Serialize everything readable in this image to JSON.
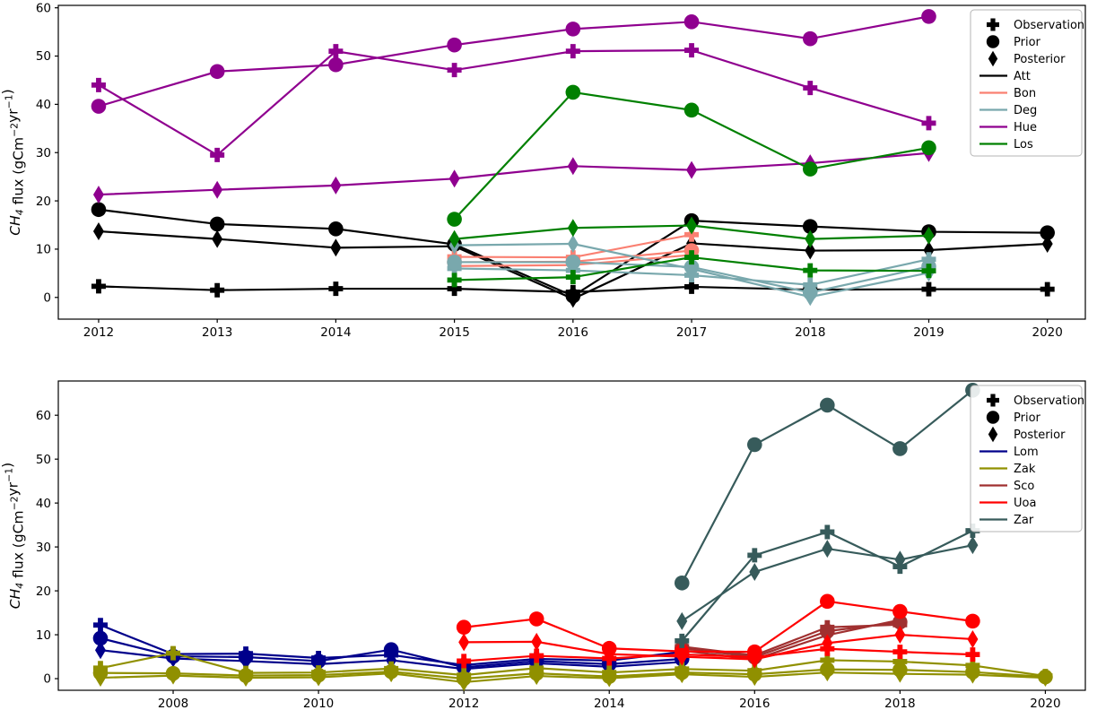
{
  "figure": {
    "background": "#ffffff",
    "marker_semantics": {
      "observation": "plus-icon",
      "prior": "circle-icon",
      "posterior": "diamond-icon"
    }
  },
  "chart_data": [
    {
      "id": "top-chart",
      "type": "line",
      "title": "",
      "xlabel": "",
      "ylabel": "CH4 flux (gCm-2yr-1)",
      "ylabel_parts": [
        {
          "text": "CH",
          "italic": true
        },
        {
          "text": "4",
          "sub": true,
          "italic": true
        },
        {
          "text": " flux (gCm"
        },
        {
          "text": "−2",
          "sup": true
        },
        {
          "text": "yr"
        },
        {
          "text": "−1",
          "sup": true
        },
        {
          "text": ")"
        }
      ],
      "xlim": [
        2011.66,
        2020.32
      ],
      "ylim": [
        -4.5,
        60.5
      ],
      "xticks": [
        2012,
        2013,
        2014,
        2015,
        2016,
        2017,
        2018,
        2019,
        2020
      ],
      "yticks": [
        0,
        10,
        20,
        30,
        40,
        50,
        60
      ],
      "grid": false,
      "legend_position": "upper right",
      "marker_legend": [
        {
          "label": "Observation",
          "marker": "plus"
        },
        {
          "label": "Prior",
          "marker": "circle"
        },
        {
          "label": "Posterior",
          "marker": "diamond"
        }
      ],
      "sites": [
        {
          "name": "Att",
          "color": "#000000",
          "years": [
            2012,
            2013,
            2014,
            2015,
            2016,
            2017,
            2018,
            2019,
            2020
          ],
          "observation": [
            2.3,
            1.5,
            1.8,
            1.8,
            1.1,
            2.2,
            1.6,
            1.7,
            1.7
          ],
          "prior": [
            18.2,
            15.2,
            14.2,
            11.0,
            0.3,
            15.9,
            14.7,
            13.6,
            13.4
          ],
          "posterior": [
            13.7,
            12.1,
            10.3,
            10.6,
            -0.3,
            11.2,
            9.7,
            9.8,
            11.1
          ]
        },
        {
          "name": "Bon",
          "color": "#fa8072",
          "years": [
            2015,
            2016,
            2017
          ],
          "observation": [
            8.4,
            8.3,
            13.0
          ],
          "prior": [
            7.3,
            7.4,
            9.7
          ],
          "posterior": [
            6.5,
            6.7,
            8.8
          ]
        },
        {
          "name": "Deg",
          "color": "#79a8ad",
          "years": [
            2015,
            2016,
            2017,
            2018,
            2019
          ],
          "observation": [
            6.0,
            5.6,
            4.6,
            2.6,
            7.9
          ],
          "prior": [
            7.3,
            7.3,
            6.3,
            1.0,
            6.4
          ],
          "posterior": [
            10.8,
            11.1,
            5.9,
            0.1,
            5.1
          ]
        },
        {
          "name": "Hue",
          "color": "#8f008f",
          "years": [
            2012,
            2013,
            2014,
            2015,
            2016,
            2017,
            2018,
            2019
          ],
          "observation": [
            44.0,
            29.5,
            51.0,
            47.1,
            51.0,
            51.2,
            43.4,
            36.1
          ],
          "prior": [
            39.6,
            46.8,
            48.2,
            52.3,
            55.6,
            57.1,
            53.6,
            58.2
          ],
          "posterior": [
            21.3,
            22.3,
            23.2,
            24.6,
            27.2,
            26.4,
            27.8,
            29.9
          ]
        },
        {
          "name": "Los",
          "color": "#008000",
          "years": [
            2015,
            2016,
            2017,
            2018,
            2019
          ],
          "observation": [
            3.6,
            4.2,
            8.3,
            5.6,
            5.5
          ],
          "prior": [
            16.2,
            42.5,
            38.8,
            26.6,
            31.0
          ],
          "posterior": [
            12.1,
            14.4,
            14.9,
            12.1,
            12.8
          ]
        }
      ]
    },
    {
      "id": "bottom-chart",
      "type": "line",
      "title": "",
      "xlabel": "",
      "ylabel": "CH4 flux (gCm-2yr-1)",
      "ylabel_parts": [
        {
          "text": "CH",
          "italic": true
        },
        {
          "text": "4",
          "sub": true,
          "italic": true
        },
        {
          "text": " flux (gCm"
        },
        {
          "text": "−2",
          "sup": true
        },
        {
          "text": "yr"
        },
        {
          "text": "−1",
          "sup": true
        },
        {
          "text": ")"
        }
      ],
      "xlim": [
        2006.42,
        2020.55
      ],
      "ylim": [
        -2.65,
        67.8
      ],
      "xticks": [
        2008,
        2010,
        2012,
        2014,
        2016,
        2018,
        2020
      ],
      "yticks": [
        0,
        10,
        20,
        30,
        40,
        50,
        60
      ],
      "grid": false,
      "legend_position": "upper right",
      "marker_legend": [
        {
          "label": "Observation",
          "marker": "plus"
        },
        {
          "label": "Prior",
          "marker": "circle"
        },
        {
          "label": "Posterior",
          "marker": "diamond"
        }
      ],
      "sites": [
        {
          "name": "Lom",
          "color": "#00008b",
          "years": [
            2007,
            2008,
            2009,
            2010,
            2011,
            2012,
            2013,
            2014,
            2015
          ],
          "observation": [
            12.2,
            5.6,
            5.7,
            4.7,
            5.4,
            3.1,
            4.5,
            4.1,
            6.1
          ],
          "prior": [
            9.2,
            5.1,
            4.9,
            4.0,
            6.6,
            2.6,
            4.0,
            3.3,
            4.5
          ],
          "posterior": [
            6.5,
            4.6,
            4.0,
            3.3,
            4.2,
            2.2,
            3.5,
            2.7,
            3.8
          ]
        },
        {
          "name": "Zak",
          "color": "#909000",
          "years": [
            2007,
            2008,
            2009,
            2010,
            2011,
            2012,
            2013,
            2014,
            2015,
            2016,
            2017,
            2018,
            2019,
            2020
          ],
          "observation": [
            2.4,
            5.8,
            1.3,
            1.4,
            2.3,
            0.8,
            2.4,
            1.4,
            2.2,
            1.8,
            4.2,
            3.9,
            3.0,
            0.6
          ],
          "prior": [
            1.3,
            1.2,
            0.7,
            0.8,
            1.6,
            0.0,
            1.2,
            0.5,
            1.4,
            1.0,
            2.1,
            2.0,
            1.5,
            0.4
          ],
          "posterior": [
            0.2,
            0.7,
            0.2,
            0.3,
            1.2,
            -0.8,
            0.6,
            0.1,
            1.0,
            0.4,
            1.4,
            1.1,
            0.9,
            0.2
          ]
        },
        {
          "name": "Sco",
          "color": "#a03030",
          "years": [
            2015,
            2016,
            2017,
            2018
          ],
          "observation": [
            7.3,
            5.3,
            11.7,
            12.3
          ],
          "prior": [
            6.9,
            4.9,
            10.8,
            12.9
          ],
          "posterior": [
            6.4,
            4.4,
            9.9,
            13.4
          ]
        },
        {
          "name": "Uoa",
          "color": "#ff0000",
          "years": [
            2012,
            2013,
            2014,
            2015,
            2016,
            2017,
            2018,
            2019
          ],
          "observation": [
            4.0,
            5.2,
            4.6,
            5.5,
            4.9,
            6.8,
            6.1,
            5.5
          ],
          "prior": [
            11.7,
            13.6,
            6.9,
            6.2,
            6.1,
            17.6,
            15.3,
            13.1
          ],
          "posterior": [
            8.3,
            8.4,
            5.6,
            5.0,
            4.4,
            8.1,
            10.0,
            9.0
          ]
        },
        {
          "name": "Zar",
          "color": "#375b5b",
          "years": [
            2015,
            2016,
            2017,
            2018,
            2019
          ],
          "observation": [
            8.6,
            28.1,
            33.4,
            25.5,
            33.7
          ],
          "prior": [
            21.8,
            53.3,
            62.3,
            52.4,
            65.7
          ],
          "posterior": [
            13.1,
            24.3,
            29.6,
            27.1,
            30.4
          ]
        }
      ]
    }
  ]
}
